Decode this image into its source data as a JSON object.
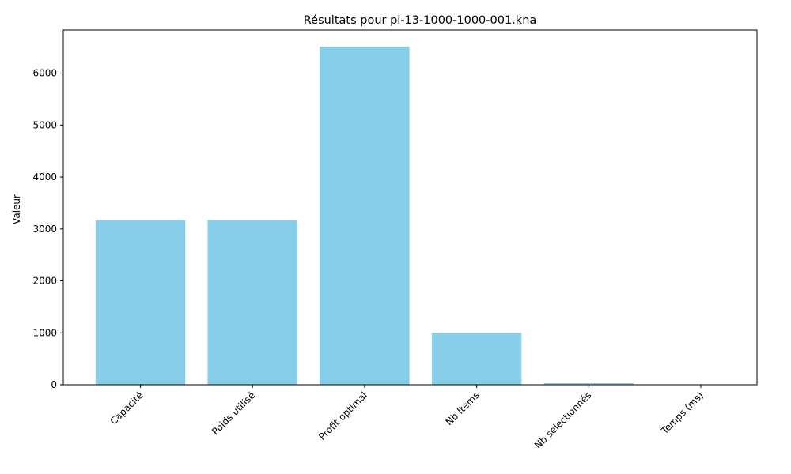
{
  "chart_data": {
    "type": "bar",
    "title": "Résultats pour pi-13-1000-1000-001.kna",
    "xlabel": "",
    "ylabel": "Valeur",
    "categories": [
      "Capacité",
      "Poids utilisé",
      "Profit optimal",
      "Nb Items",
      "Nb sélectionnés",
      "Temps (ms)"
    ],
    "values": [
      3170,
      3170,
      6510,
      1000,
      30,
      1
    ],
    "ylim": [
      0,
      6830
    ],
    "yticks": [
      0,
      1000,
      2000,
      3000,
      4000,
      5000,
      6000
    ],
    "bar_color": "#87ceeb",
    "grid": false,
    "x_tick_rotation_deg": 45
  }
}
